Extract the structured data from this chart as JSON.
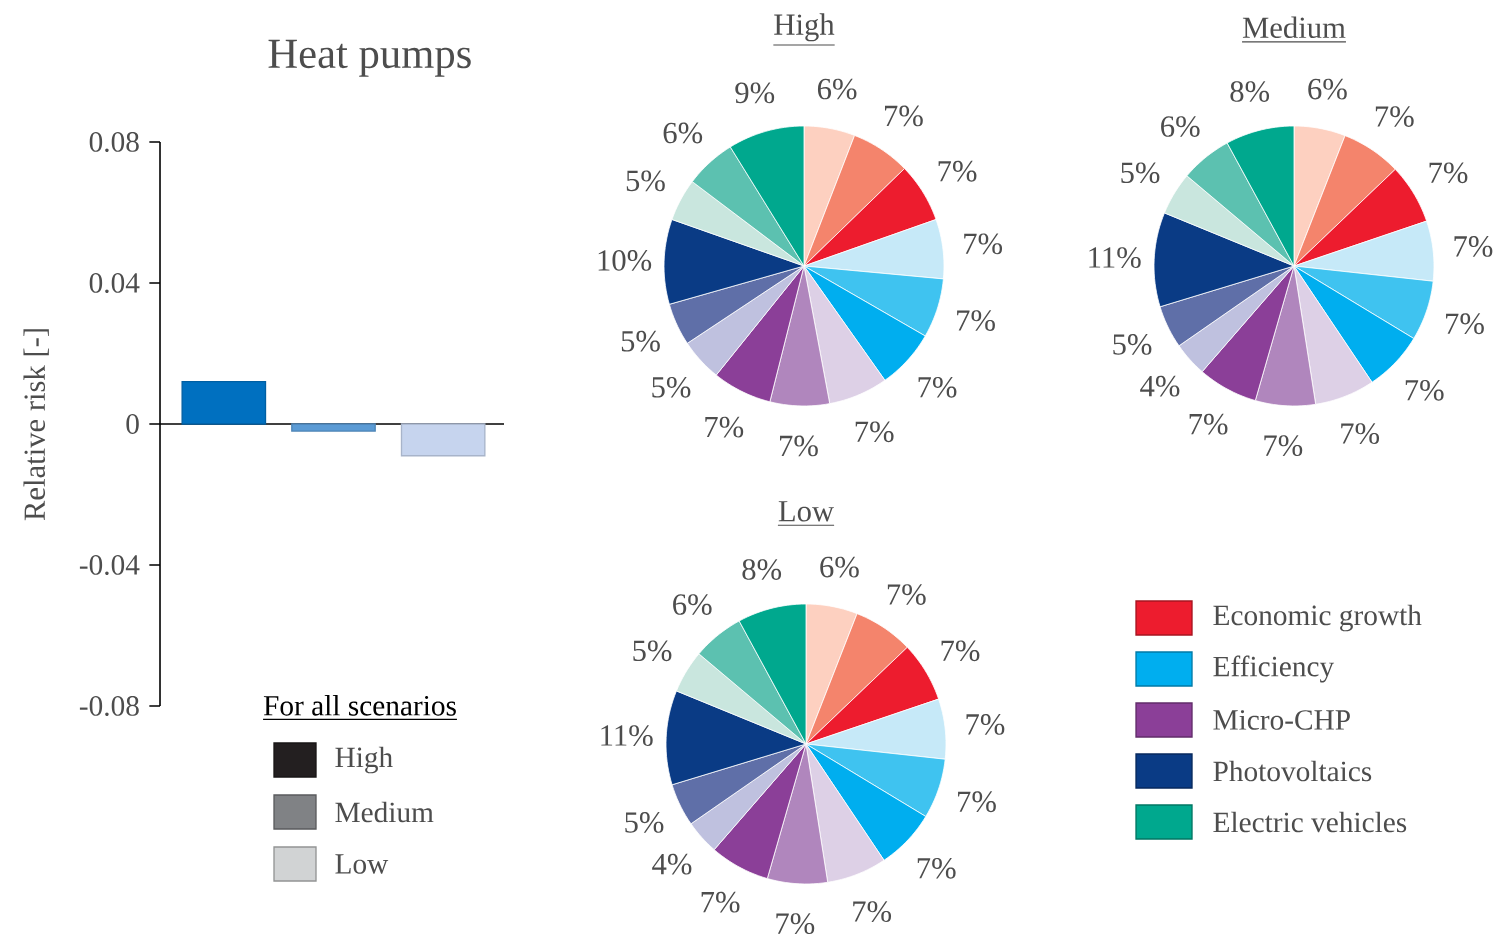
{
  "chart_data": [
    {
      "type": "bar",
      "title": "Heat pumps",
      "ylabel": "Relative risk [-]",
      "categories": [
        null,
        null,
        null
      ],
      "values": [
        0.012,
        -0.002,
        -0.009
      ],
      "colors": [
        "#0070c0",
        "#5b9bd5",
        "#c6d4ee"
      ],
      "ylim": [
        -0.08,
        0.08
      ],
      "yticks": [
        -0.08,
        -0.04,
        0,
        0.04,
        0.08
      ]
    },
    {
      "type": "other",
      "legend_title": "For all scenarios",
      "categories": [
        "High",
        "Medium",
        "Low"
      ],
      "colors": [
        "#231f20",
        "#808285",
        "#d1d3d4"
      ]
    },
    {
      "type": "pie",
      "title": "High",
      "categories": [
        null,
        null,
        null,
        null,
        null,
        null,
        null,
        null,
        null,
        null,
        null,
        null,
        null,
        null,
        null
      ],
      "values": [
        6,
        7,
        7,
        7,
        7,
        7,
        7,
        7,
        7,
        5,
        5,
        10,
        5,
        6,
        9
      ],
      "value_labels": [
        "6%",
        "7%",
        "7%",
        "7%",
        "7%",
        "7%",
        "7%",
        "7%",
        "7%",
        "5%",
        "5%",
        "10%",
        "5%",
        "6%",
        "9%"
      ],
      "colors": [
        "#fdd0c0",
        "#f4846c",
        "#ed1c2e",
        "#c6e9f8",
        "#3fc3f0",
        "#00aeef",
        "#ddd0e6",
        "#b086bd",
        "#8b3f98",
        "#bfc1df",
        "#5f6fa8",
        "#0a3b85",
        "#c9e6de",
        "#5cc1b0",
        "#00a88e"
      ]
    },
    {
      "type": "pie",
      "title": "Medium",
      "categories": [
        null,
        null,
        null,
        null,
        null,
        null,
        null,
        null,
        null,
        null,
        null,
        null,
        null,
        null,
        null
      ],
      "values": [
        6,
        7,
        7,
        7,
        7,
        7,
        7,
        7,
        7,
        4,
        5,
        11,
        5,
        6,
        8
      ],
      "value_labels": [
        "6%",
        "7%",
        "7%",
        "7%",
        "7%",
        "7%",
        "7%",
        "7%",
        "7%",
        "4%",
        "5%",
        "11%",
        "5%",
        "6%",
        "8%"
      ],
      "colors": [
        "#fdd0c0",
        "#f4846c",
        "#ed1c2e",
        "#c6e9f8",
        "#3fc3f0",
        "#00aeef",
        "#ddd0e6",
        "#b086bd",
        "#8b3f98",
        "#bfc1df",
        "#5f6fa8",
        "#0a3b85",
        "#c9e6de",
        "#5cc1b0",
        "#00a88e"
      ]
    },
    {
      "type": "pie",
      "title": "Low",
      "categories": [
        null,
        null,
        null,
        null,
        null,
        null,
        null,
        null,
        null,
        null,
        null,
        null,
        null,
        null,
        null
      ],
      "values": [
        6,
        7,
        7,
        7,
        7,
        7,
        7,
        7,
        7,
        4,
        5,
        11,
        5,
        6,
        8
      ],
      "value_labels": [
        "6%",
        "7%",
        "7%",
        "7%",
        "7%",
        "7%",
        "7%",
        "7%",
        "7%",
        "4%",
        "5%",
        "11%",
        "5%",
        "6%",
        "8%"
      ],
      "colors": [
        "#fdd0c0",
        "#f4846c",
        "#ed1c2e",
        "#c6e9f8",
        "#3fc3f0",
        "#00aeef",
        "#ddd0e6",
        "#b086bd",
        "#8b3f98",
        "#bfc1df",
        "#5f6fa8",
        "#0a3b85",
        "#c9e6de",
        "#5cc1b0",
        "#00a88e"
      ]
    },
    {
      "type": "other",
      "categories": [
        "Economic growth",
        "Efficiency",
        "Micro-CHP",
        "Photovoltaics",
        "Electric vehicles"
      ],
      "colors": [
        "#ed1c2e",
        "#00aeef",
        "#8b3f98",
        "#0a3b85",
        "#00a88e"
      ]
    }
  ]
}
